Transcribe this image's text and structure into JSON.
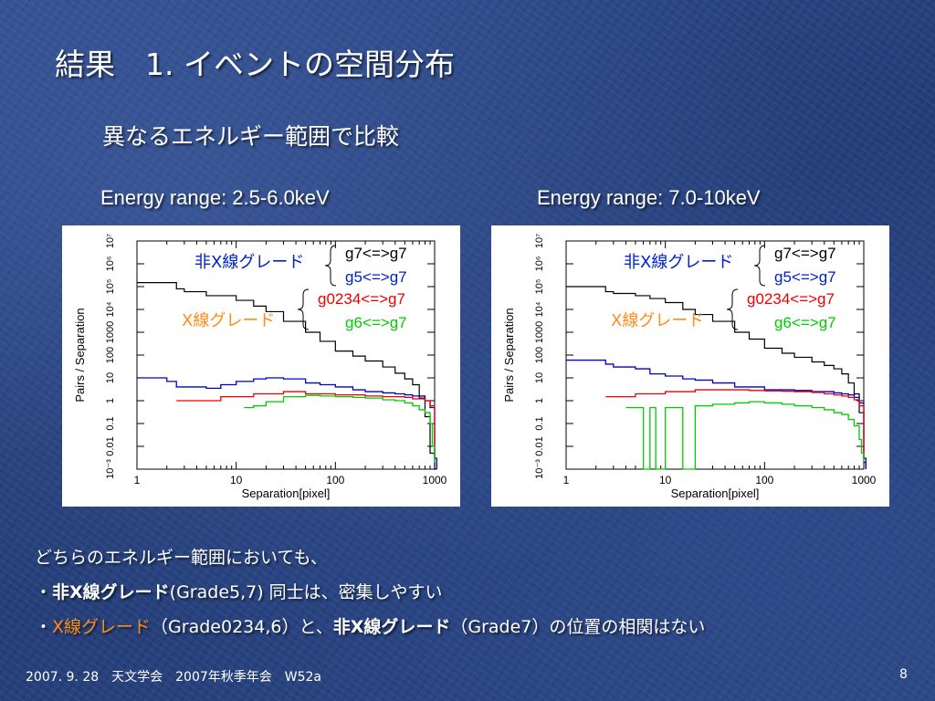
{
  "title": "結果　1. イベントの空間分布",
  "subtitle": "異なるエネルギー範囲で比較",
  "bullets": {
    "line1": "どちらのエネルギー範囲においても、",
    "line2_prefix": "・",
    "line2_highlight": "非X線グレード",
    "line2_rest": "(Grade5,7) 同士は、密集しやすい",
    "line3_prefix": "・",
    "line3_orange": "X線グレード",
    "line3_mid": "（Grade0234,6）と、",
    "line3_highlight": "非X線グレード",
    "line3_rest": "（Grade7）の位置の相関はない"
  },
  "footer": "2007. 9. 28　天文学会　2007年秋季年会　W52a",
  "page_number": "8",
  "colors": {
    "black_series": "#000000",
    "blue_series": "#0000cc",
    "red_series": "#ee0000",
    "green_series": "#00cc00",
    "annotation_blue": "#0022cc",
    "annotation_orange": "#ff8c1a",
    "annotation_red": "#ee0000",
    "annotation_green": "#00cc00"
  },
  "chart_data": [
    {
      "type": "line",
      "title": "Energy range: 2.5-6.0keV",
      "xlabel": "Separation[pixel]",
      "ylabel": "Pairs / Separation",
      "xscale": "log",
      "yscale": "log",
      "xlim": [
        1,
        1000
      ],
      "ylim": [
        0.001,
        10000000
      ],
      "xticks": [
        "1",
        "10",
        "100",
        "1000"
      ],
      "yticks": [
        "10⁻³",
        "0.01",
        "0.1",
        "1",
        "10",
        "100",
        "1000",
        "10⁴",
        "10⁵",
        "10⁶",
        "10⁷"
      ],
      "annotations": {
        "nonxray_label": "非X線グレード",
        "xray_label": "X線グレード",
        "g7_label": "g7<=>g7",
        "g5_label": "g5<=>g7",
        "g0234_label": "g0234<=>g7",
        "g6_label": "g6<=>g7"
      },
      "series": [
        {
          "key": "g7",
          "color": "black",
          "x": [
            1,
            1.5,
            2,
            2.5,
            3,
            5,
            10,
            15,
            20,
            30,
            50,
            70,
            100,
            150,
            200,
            300,
            400,
            500,
            600,
            700,
            800,
            900,
            1000,
            1050
          ],
          "y": [
            150000,
            150000,
            150000,
            80000,
            60000,
            40000,
            25000,
            14000,
            8000,
            3000,
            1000,
            400,
            150,
            90,
            55,
            30,
            16,
            9,
            5,
            1.6,
            0.2,
            0.005,
            0.001,
            0.001
          ]
        },
        {
          "key": "g5",
          "color": "blue",
          "x": [
            1,
            1.5,
            2,
            2.5,
            3,
            5,
            7,
            10,
            15,
            20,
            30,
            50,
            70,
            100,
            150,
            200,
            300,
            400,
            500,
            600,
            700,
            800,
            900,
            1000,
            1050
          ],
          "y": [
            10,
            10,
            7,
            4,
            4,
            3.5,
            5,
            7,
            9,
            10,
            9,
            6,
            5,
            4,
            3,
            2.5,
            2.2,
            2,
            1.8,
            1.6,
            1.3,
            1,
            0.5,
            0.003,
            0.001
          ]
        },
        {
          "key": "g0234",
          "color": "red",
          "x": [
            2.5,
            3,
            5,
            7,
            10,
            15,
            20,
            30,
            50,
            70,
            100,
            150,
            200,
            300,
            400,
            500,
            600,
            700,
            800,
            900,
            1000
          ],
          "y": [
            1,
            1,
            1,
            1.5,
            1.5,
            2,
            2,
            2.5,
            2,
            2,
            1.8,
            1.8,
            1.6,
            1.5,
            1.5,
            1.4,
            1.2,
            1.2,
            1,
            0.6,
            0.003
          ]
        },
        {
          "key": "g6",
          "color": "green",
          "x": [
            12,
            15,
            20,
            30,
            50,
            70,
            100,
            150,
            200,
            300,
            400,
            500,
            600,
            700,
            800,
            900,
            950,
            1000
          ],
          "y": [
            0.5,
            0.6,
            0.9,
            1.5,
            1.7,
            1.6,
            1.5,
            1.4,
            1.3,
            1.1,
            1,
            0.8,
            0.6,
            0.4,
            0.3,
            0.1,
            0.01,
            0.002
          ]
        }
      ]
    },
    {
      "type": "line",
      "title": "Energy range: 7.0-10keV",
      "xlabel": "Separation[pixel]",
      "ylabel": "Pairs / Separation",
      "xscale": "log",
      "yscale": "log",
      "xlim": [
        1,
        1000
      ],
      "ylim": [
        0.001,
        10000000
      ],
      "xticks": [
        "1",
        "10",
        "100",
        "1000"
      ],
      "yticks": [
        "10⁻³",
        "0.01",
        "0.1",
        "1",
        "10",
        "100",
        "1000",
        "10⁴",
        "10⁵",
        "10⁶",
        "10⁷"
      ],
      "annotations": {
        "nonxray_label": "非X線グレード",
        "xray_label": "X線グレード",
        "g7_label": "g7<=>g7",
        "g5_label": "g5<=>g7",
        "g0234_label": "g0234<=>g7",
        "g6_label": "g6<=>g7"
      },
      "series": [
        {
          "key": "g7",
          "color": "black",
          "x": [
            1,
            1.5,
            2,
            2.5,
            3,
            5,
            7,
            10,
            15,
            20,
            30,
            50,
            70,
            100,
            150,
            200,
            300,
            400,
            500,
            600,
            700,
            800,
            900,
            1000,
            1050
          ],
          "y": [
            100000,
            100000,
            100000,
            60000,
            50000,
            40000,
            30000,
            20000,
            10000,
            6000,
            3000,
            1000,
            500,
            200,
            120,
            80,
            50,
            35,
            25,
            15,
            6,
            2,
            0.3,
            0.002,
            0.001
          ]
        },
        {
          "key": "g5",
          "color": "blue",
          "x": [
            1,
            1.5,
            2,
            2.5,
            3,
            5,
            7,
            10,
            15,
            20,
            30,
            50,
            70,
            100,
            150,
            200,
            300,
            400,
            500,
            600,
            700,
            800,
            900,
            1000,
            1050
          ],
          "y": [
            60,
            60,
            60,
            40,
            30,
            25,
            15,
            12,
            9,
            8,
            6,
            4,
            4,
            3,
            3,
            2.8,
            2.5,
            2.5,
            2.2,
            2,
            1.8,
            1.4,
            0.8,
            0.003,
            0.001
          ]
        },
        {
          "key": "g0234",
          "color": "red",
          "x": [
            2.5,
            3,
            5,
            7,
            10,
            15,
            20,
            30,
            50,
            70,
            100,
            150,
            200,
            300,
            400,
            500,
            600,
            700,
            800,
            900,
            1000
          ],
          "y": [
            1.5,
            1.5,
            2,
            2,
            2.5,
            2.5,
            3,
            3,
            3,
            2.8,
            2.7,
            2.6,
            2.5,
            2.3,
            2,
            1.8,
            1.6,
            1.4,
            1.1,
            0.6,
            0.003
          ]
        },
        {
          "key": "g6",
          "color": "green",
          "x": [
            4,
            5,
            6,
            7,
            8,
            10,
            12,
            15,
            20,
            30,
            50,
            70,
            100,
            150,
            200,
            300,
            400,
            500,
            600,
            700,
            800,
            900,
            950,
            1000
          ],
          "y": [
            0.5,
            0.5,
            0.001,
            0.5,
            0.001,
            0.5,
            0.5,
            0.001,
            0.6,
            0.7,
            0.8,
            0.9,
            0.8,
            0.7,
            0.6,
            0.5,
            0.4,
            0.3,
            0.25,
            0.15,
            0.08,
            0.02,
            0.005,
            0.002
          ]
        }
      ]
    }
  ]
}
